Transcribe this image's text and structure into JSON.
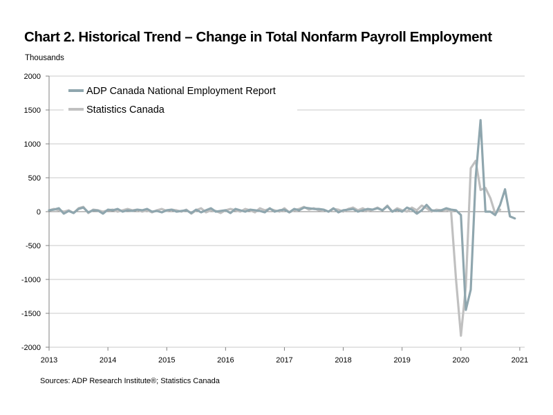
{
  "title": "Chart 2. Historical Trend – Change in Total Nonfarm Payroll Employment",
  "unit_label": "Thousands",
  "source": "Sources: ADP Research Institute®; Statistics Canada",
  "colors": {
    "adp": "#8fa6ae",
    "statcan": "#c0c0c0",
    "grid": "#c8c8c8",
    "axis": "#808080"
  },
  "chart_data": {
    "type": "line",
    "ylim": [
      -2000,
      2000
    ],
    "y_ticks": [
      2000,
      1500,
      1000,
      500,
      0,
      -500,
      -1000,
      -1500,
      -2000
    ],
    "x_ticks": [
      "2013",
      "2014",
      "2015",
      "2016",
      "2017",
      "2018",
      "2019",
      "2020",
      "2021"
    ],
    "xlim": [
      0,
      97
    ],
    "grid": "horizontal",
    "legend_position": "top-left",
    "series": [
      {
        "name": "ADP Canada National Employment Report",
        "values": [
          20,
          30,
          50,
          -30,
          10,
          -20,
          40,
          60,
          -10,
          20,
          15,
          -30,
          30,
          20,
          40,
          0,
          20,
          10,
          30,
          20,
          40,
          0,
          10,
          -10,
          20,
          30,
          0,
          10,
          20,
          -20,
          30,
          -10,
          20,
          50,
          0,
          10,
          20,
          -20,
          40,
          20,
          0,
          30,
          20,
          10,
          -10,
          50,
          0,
          20,
          30,
          -10,
          40,
          20,
          60,
          50,
          40,
          40,
          30,
          0,
          50,
          -10,
          20,
          30,
          40,
          0,
          20,
          40,
          30,
          50,
          20,
          80,
          0,
          30,
          0,
          60,
          30,
          -30,
          20,
          100,
          20,
          10,
          20,
          50,
          30,
          20,
          -50,
          -1450,
          -1150,
          500,
          1350,
          0,
          0,
          -50,
          100,
          330,
          -70,
          -100
        ]
      },
      {
        "name": "Statistics Canada",
        "values": [
          20,
          40,
          20,
          0,
          20,
          -20,
          50,
          70,
          -20,
          30,
          20,
          0,
          20,
          30,
          0,
          20,
          40,
          20,
          30,
          0,
          20,
          -10,
          20,
          40,
          10,
          30,
          20,
          0,
          30,
          -30,
          20,
          50,
          -10,
          20,
          10,
          -20,
          20,
          40,
          20,
          0,
          40,
          20,
          -10,
          50,
          20,
          40,
          20,
          0,
          50,
          -10,
          20,
          40,
          70,
          30,
          50,
          20,
          30,
          0,
          40,
          30,
          0,
          40,
          60,
          20,
          50,
          10,
          30,
          60,
          20,
          90,
          0,
          50,
          20,
          0,
          60,
          20,
          90,
          50,
          0,
          30,
          20,
          30,
          0,
          -1000,
          -1830,
          -1100,
          640,
          750,
          320,
          350,
          200,
          -30,
          30
        ]
      }
    ]
  }
}
